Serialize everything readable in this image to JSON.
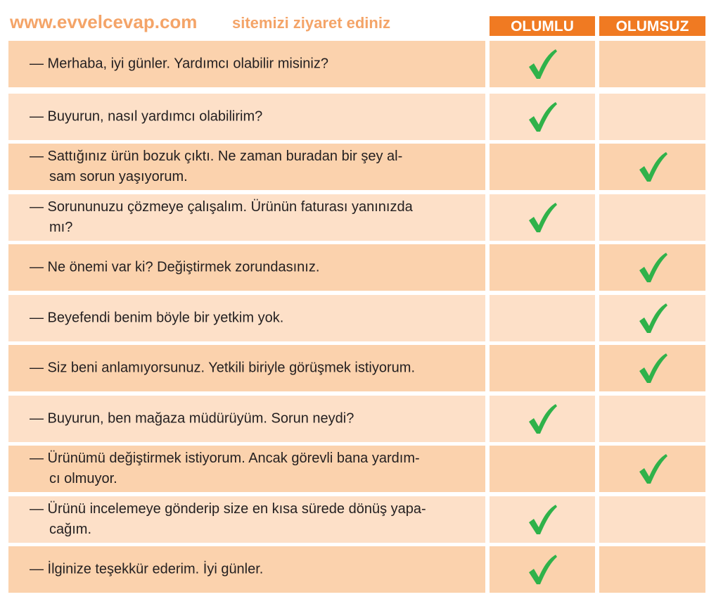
{
  "columns": {
    "positive": "OLUMLU",
    "negative": "OLUMSUZ"
  },
  "colors": {
    "header": "#f07a22",
    "row_dark": "#fbd2ad",
    "row_light": "#fde0c8",
    "check": "#2fb24a"
  },
  "rows": [
    {
      "line1": "— Merhaba, iyi günler. Yardımcı olabilir misiniz?",
      "line2": "",
      "answer": "OLUMLU"
    },
    {
      "line1": "— Buyurun, nasıl yardımcı olabilirim?",
      "line2": "",
      "answer": "OLUMLU"
    },
    {
      "line1": "— Sattığınız ürün bozuk çıktı. Ne zaman buradan bir şey al-",
      "line2": "sam sorun yaşıyorum.",
      "answer": "OLUMSUZ"
    },
    {
      "line1": "— Sorununuzu çözmeye çalışalım. Ürünün faturası yanınızda",
      "line2": "mı?",
      "answer": "OLUMLU"
    },
    {
      "line1": "— Ne önemi var ki? Değiştirmek zorundasınız.",
      "line2": "",
      "answer": "OLUMSUZ"
    },
    {
      "line1": "— Beyefendi benim böyle bir yetkim yok.",
      "line2": "",
      "answer": "OLUMSUZ"
    },
    {
      "line1": "— Siz beni anlamıyorsunuz. Yetkili biriyle görüşmek istiyorum.",
      "line2": "",
      "answer": "OLUMSUZ"
    },
    {
      "line1": "— Buyurun, ben mağaza müdürüyüm. Sorun neydi?",
      "line2": "",
      "answer": "OLUMLU"
    },
    {
      "line1": "— Ürünümü değiştirmek istiyorum. Ancak görevli bana yardım-",
      "line2": "cı olmuyor.",
      "answer": "OLUMSUZ"
    },
    {
      "line1": "— Ürünü incelemeye gönderip size en kısa sürede dönüş yapa-",
      "line2": "cağım.",
      "answer": "OLUMLU"
    },
    {
      "line1": "— İlginize teşekkür ederim. İyi günler.",
      "line2": "",
      "answer": "OLUMLU"
    }
  ],
  "watermark": {
    "main": "www.evvelcevap.com",
    "sub": "sitemizi ziyaret ediniz"
  }
}
